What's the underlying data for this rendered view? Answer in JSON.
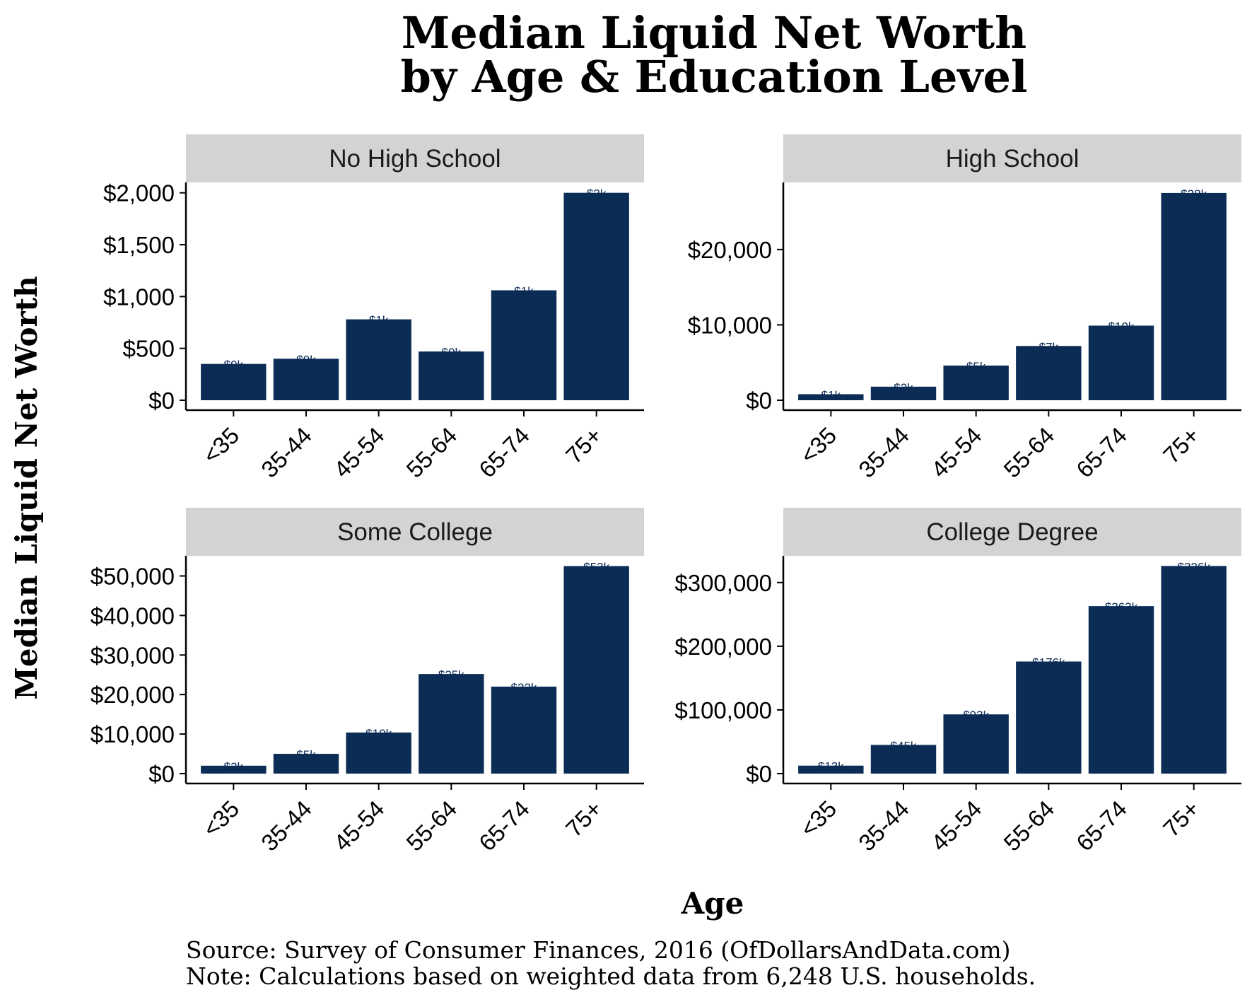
{
  "title_line1": "Median Liquid Net Worth",
  "title_line2": "by Age & Education Level",
  "ylabel": "Median Liquid Net Worth",
  "xlabel": "Age",
  "source": "Source:  Survey of Consumer Finances, 2016 (OfDollarsAndData.com)",
  "note": "Note: Calculations based on weighted data from 6,248 U.S. households.",
  "colors": {
    "bar": "#0b2c55",
    "strip": "#d3d3d3",
    "axis": "#000000"
  },
  "chart_data": [
    {
      "type": "bar",
      "facet": "No High School",
      "categories": [
        "<35",
        "35-44",
        "45-54",
        "55-64",
        "65-74",
        "75+"
      ],
      "values": [
        350,
        400,
        780,
        470,
        1060,
        2000
      ],
      "labels": [
        "$0k",
        "$0k",
        "$1k",
        "$0k",
        "$1k",
        "$2k"
      ],
      "ylim": [
        0,
        2100
      ],
      "yticks": [
        0,
        500,
        1000,
        1500,
        2000
      ],
      "ytick_labels": [
        "$0",
        "$500",
        "$1,000",
        "$1,500",
        "$2,000"
      ]
    },
    {
      "type": "bar",
      "facet": "High School",
      "categories": [
        "<35",
        "35-44",
        "45-54",
        "55-64",
        "65-74",
        "75+"
      ],
      "values": [
        800,
        1800,
        4600,
        7200,
        9900,
        27500
      ],
      "labels": [
        "$1k",
        "$2k",
        "$5k",
        "$7k",
        "$10k",
        "$28k"
      ],
      "ylim": [
        0,
        28900
      ],
      "yticks": [
        0,
        10000,
        20000
      ],
      "ytick_labels": [
        "$0",
        "$10,000",
        "$20,000"
      ]
    },
    {
      "type": "bar",
      "facet": "Some College",
      "categories": [
        "<35",
        "35-44",
        "45-54",
        "55-64",
        "65-74",
        "75+"
      ],
      "values": [
        2000,
        5000,
        10400,
        25200,
        22000,
        52500
      ],
      "labels": [
        "$2k",
        "$5k",
        "$10k",
        "$25k",
        "$22k",
        "$53k"
      ],
      "ylim": [
        0,
        55100
      ],
      "yticks": [
        0,
        10000,
        20000,
        30000,
        40000,
        50000
      ],
      "ytick_labels": [
        "$0",
        "$10,000",
        "$20,000",
        "$30,000",
        "$40,000",
        "$50,000"
      ]
    },
    {
      "type": "bar",
      "facet": "College Degree",
      "categories": [
        "<35",
        "35-44",
        "45-54",
        "55-64",
        "65-74",
        "75+"
      ],
      "values": [
        12500,
        45000,
        93000,
        176000,
        263000,
        326000
      ],
      "labels": [
        "$13k",
        "$45k",
        "$93k",
        "$176k",
        "$263k",
        "$326k"
      ],
      "ylim": [
        0,
        342000
      ],
      "yticks": [
        0,
        100000,
        200000,
        300000
      ],
      "ytick_labels": [
        "$0",
        "$100,000",
        "$200,000",
        "$300,000"
      ]
    }
  ]
}
